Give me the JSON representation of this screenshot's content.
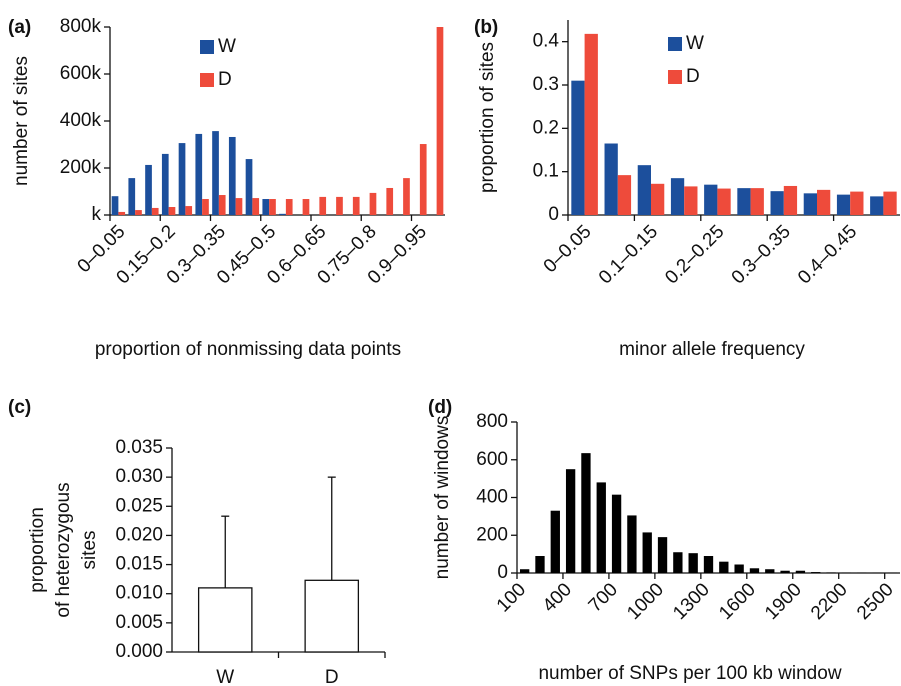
{
  "chart_data": [
    {
      "type": "bar",
      "panel": "(a)",
      "x_label": "proportion of nonmissing data points",
      "y_label": "number of sites",
      "categories": [
        "0–0.05",
        null,
        null,
        "0.15–0.2",
        null,
        null,
        "0.3–0.35",
        null,
        null,
        "0.45–0.5",
        null,
        null,
        "0.6–0.65",
        null,
        null,
        "0.75–0.8",
        null,
        null,
        "0.9–0.95",
        null
      ],
      "series": [
        {
          "name": "W",
          "color": "#1c4f9c",
          "values": [
            80000,
            157000,
            213000,
            260000,
            306000,
            345000,
            357000,
            332000,
            238000,
            68000,
            5000,
            0,
            0,
            0,
            0,
            0,
            0,
            0,
            0,
            0
          ]
        },
        {
          "name": "D",
          "color": "#ee4b3b",
          "values": [
            13000,
            21000,
            30000,
            34000,
            38000,
            68000,
            85000,
            72000,
            72000,
            68000,
            68000,
            68000,
            77000,
            77000,
            77000,
            94000,
            115000,
            157000,
            302000,
            800000
          ]
        }
      ],
      "ylim": [
        0,
        800000
      ],
      "yticks": [
        {
          "value": 0,
          "label": "k"
        },
        {
          "value": 200000,
          "label": "200k"
        },
        {
          "value": 400000,
          "label": "400k"
        },
        {
          "value": 600000,
          "label": "600k"
        },
        {
          "value": 800000,
          "label": "800k"
        }
      ]
    },
    {
      "type": "bar",
      "panel": "(b)",
      "x_label": "minor allele frequency",
      "y_label": "proportion of sites",
      "categories": [
        "0–0.05",
        null,
        "0.1–0.15",
        null,
        "0.2–0.25",
        null,
        "0.3–0.35",
        null,
        "0.4–0.45",
        null
      ],
      "series": [
        {
          "name": "W",
          "color": "#1c4f9c",
          "values": [
            0.31,
            0.165,
            0.115,
            0.085,
            0.07,
            0.062,
            0.055,
            0.05,
            0.047,
            0.043
          ]
        },
        {
          "name": "D",
          "color": "#ee4b3b",
          "values": [
            0.418,
            0.092,
            0.072,
            0.066,
            0.061,
            0.062,
            0.067,
            0.058,
            0.054,
            0.054
          ]
        }
      ],
      "ylim": [
        0,
        0.45
      ],
      "yticks": [
        0,
        0.1,
        0.2,
        0.3,
        0.4
      ]
    },
    {
      "type": "errorbar",
      "panel": "(c)",
      "y_label": [
        "proportion",
        "of heterozygous",
        "sites"
      ],
      "categories": [
        "W",
        "D"
      ],
      "values": [
        0.011,
        0.0123
      ],
      "errors": [
        0.0123,
        0.0177
      ],
      "color": "#ffffff",
      "ylim": [
        0,
        0.035
      ],
      "yticks": [
        {
          "value": 0,
          "label": "0.000"
        },
        {
          "value": 0.005,
          "label": "0.005"
        },
        {
          "value": 0.01,
          "label": "0.010"
        },
        {
          "value": 0.015,
          "label": "0.015"
        },
        {
          "value": 0.02,
          "label": "0.020"
        },
        {
          "value": 0.025,
          "label": "0.025"
        },
        {
          "value": 0.03,
          "label": "0.030"
        },
        {
          "value": 0.035,
          "label": "0.035"
        }
      ]
    },
    {
      "type": "histogram",
      "panel": "(d)",
      "x_label": "number of SNPs per 100 kb window",
      "y_label": "number of windows",
      "bins": [
        100,
        200,
        300,
        400,
        500,
        600,
        700,
        800,
        900,
        1000,
        1100,
        1200,
        1300,
        1400,
        1500,
        1600,
        1700,
        1800,
        1900,
        2000,
        2100,
        2200,
        2300,
        2400,
        2500,
        2600
      ],
      "values": [
        20,
        90,
        330,
        550,
        635,
        480,
        415,
        305,
        215,
        190,
        110,
        105,
        90,
        60,
        45,
        25,
        20,
        12,
        12,
        5,
        3,
        2,
        2,
        1,
        1
      ],
      "color": "#000000",
      "xlim": [
        100,
        2600
      ],
      "xticks": [
        100,
        400,
        700,
        1000,
        1300,
        1600,
        1900,
        2200,
        2500
      ],
      "ylim": [
        0,
        800
      ],
      "yticks": [
        0,
        200,
        400,
        600,
        800
      ]
    }
  ]
}
